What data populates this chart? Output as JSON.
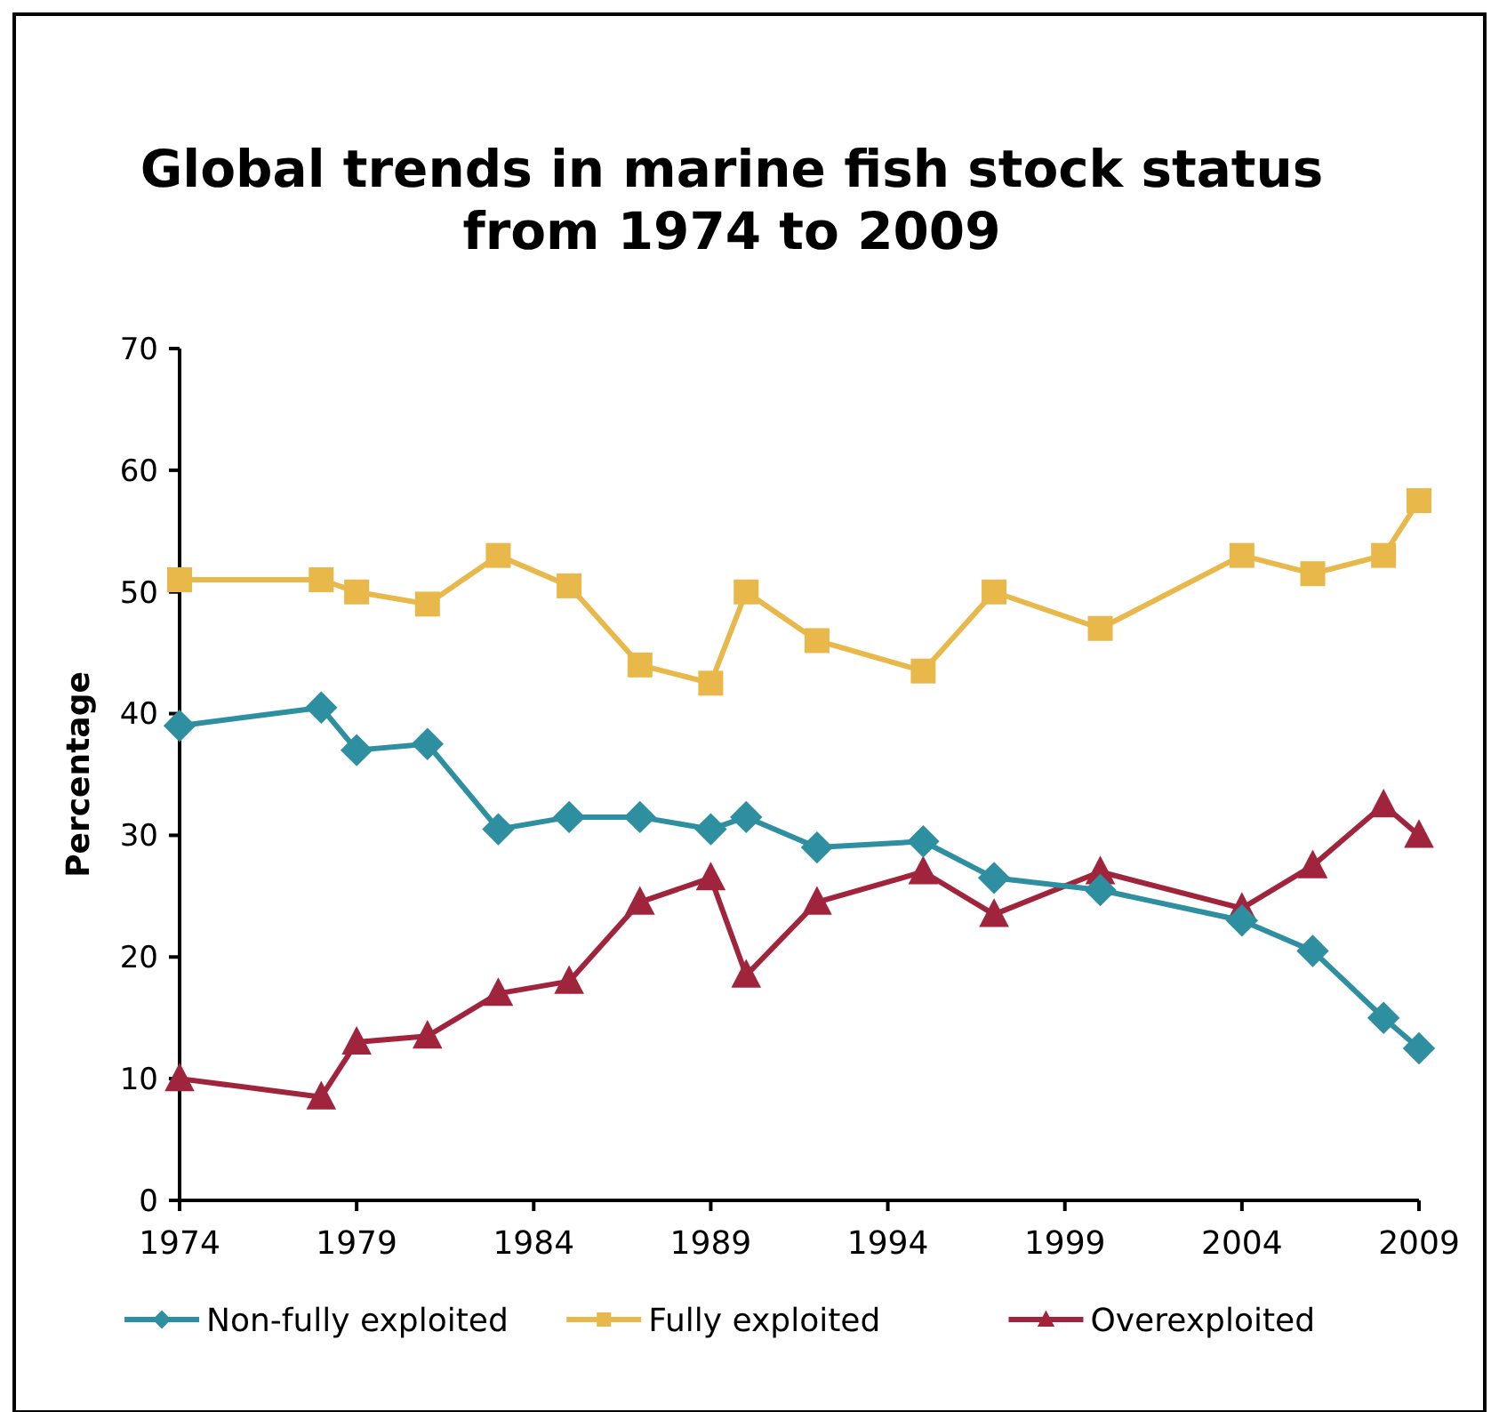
{
  "chart_data": {
    "type": "line",
    "title": "Global trends in marine fish stock status from 1974 to 2009",
    "ylabel": "Percentage",
    "x": [
      1974,
      1978,
      1979,
      1981,
      1983,
      1985,
      1987,
      1989,
      1990,
      1992,
      1995,
      1997,
      2000,
      2004,
      2006,
      2008,
      2009
    ],
    "xlim": [
      1974,
      2009
    ],
    "xticks": [
      1974,
      1979,
      1984,
      1989,
      1994,
      1999,
      2004,
      2009
    ],
    "ylim": [
      0,
      70
    ],
    "yticks": [
      0,
      10,
      20,
      30,
      40,
      50,
      60,
      70
    ],
    "grid": false,
    "legend": "bottom",
    "series": [
      {
        "name": "Non-fully exploited",
        "color": "#2e8fa0",
        "marker": "diamond",
        "values": [
          39,
          40.5,
          37,
          37.5,
          30.5,
          31.5,
          31.5,
          30.5,
          31.5,
          29,
          29.5,
          26.5,
          25.5,
          23,
          20.5,
          15,
          12.5
        ]
      },
      {
        "name": "Fully exploited",
        "color": "#e8b84a",
        "marker": "square",
        "values": [
          51,
          51,
          50,
          49,
          53,
          50.5,
          44,
          42.5,
          50,
          46,
          43.5,
          50,
          47,
          53,
          51.5,
          53,
          57.5
        ]
      },
      {
        "name": "Overexploited",
        "color": "#a0243c",
        "marker": "triangle",
        "values": [
          10,
          8.5,
          13,
          13.5,
          17,
          18,
          24.5,
          26.5,
          18.5,
          24.5,
          27,
          23.5,
          27,
          24,
          27.5,
          32.5,
          30
        ]
      }
    ]
  }
}
